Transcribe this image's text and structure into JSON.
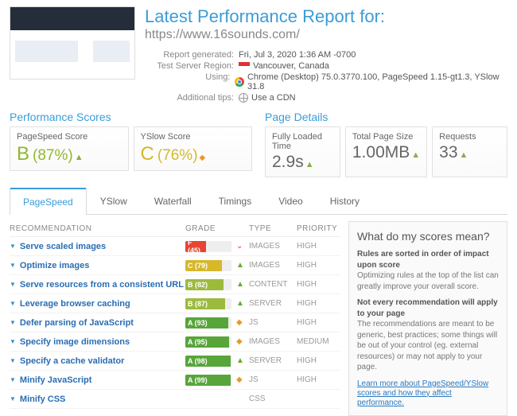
{
  "header": {
    "title": "Latest Performance Report for:",
    "subtitle": "https://www.16sounds.com/",
    "meta": {
      "generated_label": "Report generated:",
      "generated_value": "Fri, Jul 3, 2020 1:36 AM -0700",
      "region_label": "Test Server Region:",
      "region_value": "Vancouver, Canada",
      "using_label": "Using:",
      "using_value": "Chrome (Desktop) 75.0.3770.100, PageSpeed 1.15-gt1.3, YSlow 31.8",
      "tips_label": "Additional tips:",
      "tips_value": "Use a CDN"
    }
  },
  "scores": {
    "title": "Performance Scores",
    "pagespeed_label": "PageSpeed Score",
    "pagespeed_letter": "B",
    "pagespeed_value": "(87%)",
    "yslow_label": "YSlow Score",
    "yslow_letter": "C",
    "yslow_value": "(76%)"
  },
  "details": {
    "title": "Page Details",
    "load_label": "Fully Loaded Time",
    "load_value": "2.9s",
    "size_label": "Total Page Size",
    "size_value": "1.00MB",
    "req_label": "Requests",
    "req_value": "33"
  },
  "tabs": {
    "pagespeed": "PageSpeed",
    "yslow": "YSlow",
    "waterfall": "Waterfall",
    "timings": "Timings",
    "video": "Video",
    "history": "History"
  },
  "columns": {
    "rec": "RECOMMENDATION",
    "grade": "GRADE",
    "type": "TYPE",
    "priority": "PRIORITY"
  },
  "rows": [
    {
      "rec": "Serve scaled images",
      "grade": "F (45)",
      "fill": 45,
      "color": "#e74432",
      "icon": "down",
      "icon_color": "#d34",
      "type": "IMAGES",
      "priority": "HIGH"
    },
    {
      "rec": "Optimize images",
      "grade": "C (79)",
      "fill": 79,
      "color": "#d6b82a",
      "icon": "up",
      "icon_color": "#6a3",
      "type": "IMAGES",
      "priority": "HIGH"
    },
    {
      "rec": "Serve resources from a consistent URL",
      "grade": "B (82)",
      "fill": 82,
      "color": "#9cbb3c",
      "icon": "up",
      "icon_color": "#6a3",
      "type": "CONTENT",
      "priority": "HIGH"
    },
    {
      "rec": "Leverage browser caching",
      "grade": "B (87)",
      "fill": 87,
      "color": "#9cbb3c",
      "icon": "up",
      "icon_color": "#6a3",
      "type": "SERVER",
      "priority": "HIGH"
    },
    {
      "rec": "Defer parsing of JavaScript",
      "grade": "A (93)",
      "fill": 93,
      "color": "#58a53a",
      "icon": "diamond",
      "icon_color": "#e89a2a",
      "type": "JS",
      "priority": "HIGH"
    },
    {
      "rec": "Specify image dimensions",
      "grade": "A (95)",
      "fill": 95,
      "color": "#58a53a",
      "icon": "diamond",
      "icon_color": "#e89a2a",
      "type": "IMAGES",
      "priority": "MEDIUM"
    },
    {
      "rec": "Specify a cache validator",
      "grade": "A (98)",
      "fill": 98,
      "color": "#58a53a",
      "icon": "up",
      "icon_color": "#6a3",
      "type": "SERVER",
      "priority": "HIGH"
    },
    {
      "rec": "Minify JavaScript",
      "grade": "A (99)",
      "fill": 99,
      "color": "#58a53a",
      "icon": "diamond",
      "icon_color": "#e89a2a",
      "type": "JS",
      "priority": "HIGH"
    },
    {
      "rec": "Minify CSS",
      "grade": "",
      "fill": 0,
      "color": "#58a53a",
      "icon": "",
      "icon_color": "",
      "type": "CSS",
      "priority": ""
    }
  ],
  "sidebar": {
    "title": "What do my scores mean?",
    "p1b": "Rules are sorted in order of impact upon score",
    "p1": "Optimizing rules at the top of the list can greatly improve your overall score.",
    "p2b": "Not every recommendation will apply to your page",
    "p2": "The recommendations are meant to be generic, best practices; some things will be out of your control (eg. external resources) or may not apply to your page.",
    "link": "Learn more about PageSpeed/YSlow scores and how they affect performance."
  }
}
